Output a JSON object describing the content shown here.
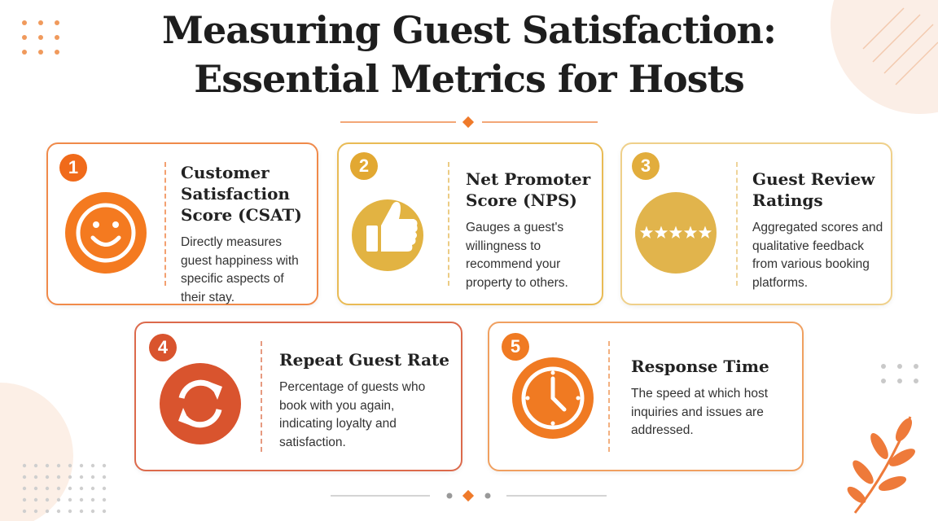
{
  "header": {
    "title_line1": "Measuring Guest Satisfaction:",
    "title_line2": "Essential Metrics for Hosts"
  },
  "cards": [
    {
      "number": "1",
      "title": "Customer Satisfaction Score (CSAT)",
      "description": "Directly measures guest happiness with specific aspects of their stay."
    },
    {
      "number": "2",
      "title": "Net Promoter Score (NPS)",
      "description": "Gauges a guest's willingness to recommend your property to others."
    },
    {
      "number": "3",
      "title": "Guest Review Ratings",
      "description": "Aggregated scores and qualitative feedback from various booking platforms."
    },
    {
      "number": "4",
      "title": "Repeat Guest Rate",
      "description": "Percentage of guests who book with you again, indicating loyalty and satisfaction."
    },
    {
      "number": "5",
      "title": "Response Time",
      "description": "The speed at which host inquiries and issues are addressed."
    }
  ]
}
